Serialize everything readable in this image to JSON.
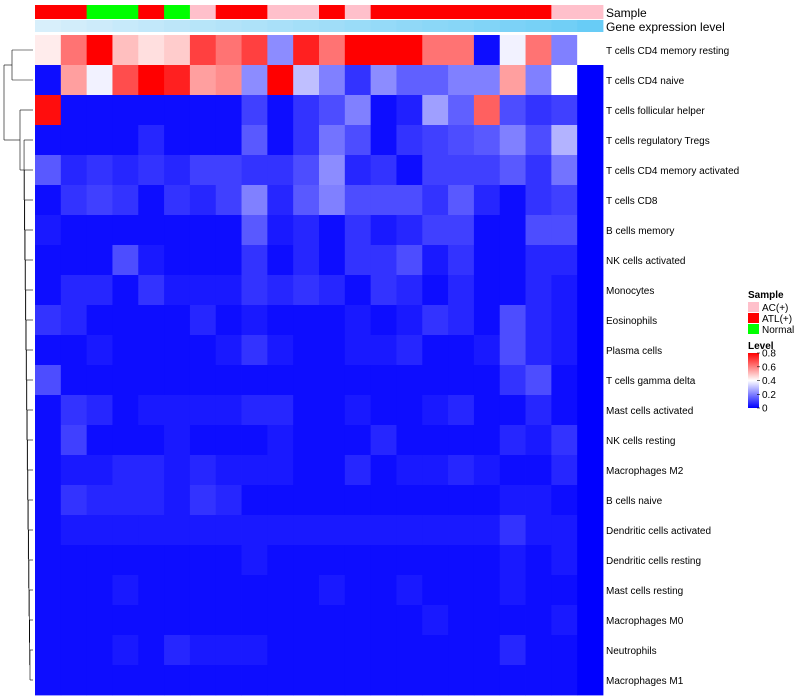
{
  "chart_data": {
    "type": "heatmap",
    "title": "",
    "annotation_tracks": [
      {
        "name": "Sample",
        "values": [
          "ATL(+)",
          "ATL(+)",
          "Normal",
          "Normal",
          "ATL(+)",
          "Normal",
          "AC(+)",
          "ATL(+)",
          "ATL(+)",
          "AC(+)",
          "AC(+)",
          "ATL(+)",
          "AC(+)",
          "ATL(+)",
          "ATL(+)",
          "ATL(+)",
          "ATL(+)",
          "ATL(+)",
          "ATL(+)",
          "ATL(+)",
          "AC(+)",
          "AC(+)"
        ]
      },
      {
        "name": "Gene expression level",
        "values": [
          0.05,
          0.1,
          0.14,
          0.18,
          0.22,
          0.26,
          0.3,
          0.33,
          0.37,
          0.41,
          0.45,
          0.48,
          0.52,
          0.56,
          0.6,
          0.64,
          0.67,
          0.71,
          0.75,
          0.79,
          0.83,
          0.9
        ]
      }
    ],
    "rows": [
      "T cells CD4 memory resting",
      "T cells CD4 naive",
      "T cells follicular helper",
      "T cells regulatory  Tregs",
      "T cells CD4 memory activated",
      "T cells CD8",
      "B cells memory",
      "NK cells activated",
      "Monocytes",
      "Eosinophils",
      "Plasma cells",
      "T cells gamma delta",
      "Mast cells activated",
      "NK cells resting",
      "Macrophages M2",
      "B cells naive",
      "Dendritic cells activated",
      "Dendritic cells resting",
      "Mast cells resting",
      "Macrophages M0",
      "Neutrophils",
      "Macrophages M1"
    ],
    "values": [
      [
        0.43,
        0.62,
        0.8,
        0.5,
        0.45,
        0.48,
        0.7,
        0.62,
        0.7,
        0.22,
        0.75,
        0.62,
        0.8,
        0.8,
        0.8,
        0.62,
        0.62,
        0.02,
        0.38,
        0.62,
        0.2,
        0.4
      ],
      [
        0.02,
        0.55,
        0.38,
        0.68,
        0.8,
        0.75,
        0.55,
        0.58,
        0.22,
        0.8,
        0.3,
        0.2,
        0.08,
        0.22,
        0.15,
        0.15,
        0.2,
        0.2,
        0.55,
        0.2,
        0.4,
        0.0
      ],
      [
        0.78,
        0.02,
        0.02,
        0.02,
        0.02,
        0.02,
        0.02,
        0.02,
        0.1,
        0.02,
        0.08,
        0.12,
        0.2,
        0.02,
        0.05,
        0.25,
        0.15,
        0.65,
        0.12,
        0.08,
        0.1,
        0.0
      ],
      [
        0.02,
        0.02,
        0.02,
        0.02,
        0.06,
        0.02,
        0.02,
        0.02,
        0.14,
        0.02,
        0.08,
        0.18,
        0.12,
        0.02,
        0.08,
        0.1,
        0.12,
        0.14,
        0.2,
        0.12,
        0.28,
        0.0
      ],
      [
        0.14,
        0.06,
        0.08,
        0.06,
        0.08,
        0.06,
        0.1,
        0.1,
        0.08,
        0.08,
        0.12,
        0.22,
        0.06,
        0.08,
        0.02,
        0.1,
        0.1,
        0.1,
        0.14,
        0.08,
        0.18,
        0.0
      ],
      [
        0.02,
        0.08,
        0.1,
        0.08,
        0.02,
        0.08,
        0.06,
        0.1,
        0.2,
        0.06,
        0.14,
        0.2,
        0.12,
        0.12,
        0.12,
        0.08,
        0.14,
        0.06,
        0.02,
        0.08,
        0.1,
        0.0
      ],
      [
        0.04,
        0.02,
        0.02,
        0.02,
        0.02,
        0.02,
        0.02,
        0.02,
        0.14,
        0.04,
        0.06,
        0.02,
        0.08,
        0.04,
        0.06,
        0.1,
        0.1,
        0.02,
        0.02,
        0.12,
        0.12,
        0.0
      ],
      [
        0.02,
        0.02,
        0.02,
        0.12,
        0.04,
        0.02,
        0.02,
        0.02,
        0.08,
        0.02,
        0.06,
        0.02,
        0.08,
        0.08,
        0.12,
        0.04,
        0.08,
        0.02,
        0.02,
        0.06,
        0.06,
        0.0
      ],
      [
        0.02,
        0.06,
        0.06,
        0.02,
        0.08,
        0.04,
        0.04,
        0.04,
        0.08,
        0.06,
        0.08,
        0.06,
        0.02,
        0.08,
        0.06,
        0.02,
        0.06,
        0.02,
        0.02,
        0.06,
        0.04,
        0.0
      ],
      [
        0.08,
        0.06,
        0.02,
        0.02,
        0.02,
        0.02,
        0.06,
        0.02,
        0.04,
        0.02,
        0.02,
        0.02,
        0.04,
        0.02,
        0.04,
        0.08,
        0.06,
        0.02,
        0.12,
        0.06,
        0.04,
        0.0
      ],
      [
        0.02,
        0.02,
        0.04,
        0.02,
        0.02,
        0.02,
        0.02,
        0.04,
        0.08,
        0.04,
        0.02,
        0.02,
        0.04,
        0.04,
        0.06,
        0.02,
        0.02,
        0.04,
        0.12,
        0.06,
        0.04,
        0.0
      ],
      [
        0.12,
        0.02,
        0.02,
        0.02,
        0.02,
        0.02,
        0.02,
        0.02,
        0.02,
        0.02,
        0.02,
        0.02,
        0.02,
        0.02,
        0.02,
        0.02,
        0.02,
        0.02,
        0.08,
        0.12,
        0.02,
        0.0
      ],
      [
        0.02,
        0.08,
        0.06,
        0.02,
        0.04,
        0.04,
        0.04,
        0.04,
        0.06,
        0.06,
        0.02,
        0.02,
        0.04,
        0.02,
        0.02,
        0.04,
        0.06,
        0.02,
        0.02,
        0.06,
        0.02,
        0.0
      ],
      [
        0.02,
        0.1,
        0.02,
        0.02,
        0.02,
        0.04,
        0.02,
        0.02,
        0.02,
        0.04,
        0.02,
        0.02,
        0.02,
        0.06,
        0.02,
        0.02,
        0.02,
        0.02,
        0.06,
        0.04,
        0.08,
        0.0
      ],
      [
        0.02,
        0.04,
        0.04,
        0.06,
        0.06,
        0.04,
        0.06,
        0.04,
        0.04,
        0.04,
        0.02,
        0.02,
        0.06,
        0.02,
        0.04,
        0.04,
        0.06,
        0.04,
        0.02,
        0.02,
        0.06,
        0.0
      ],
      [
        0.02,
        0.08,
        0.06,
        0.06,
        0.06,
        0.04,
        0.08,
        0.06,
        0.02,
        0.02,
        0.02,
        0.02,
        0.02,
        0.02,
        0.02,
        0.02,
        0.02,
        0.02,
        0.04,
        0.04,
        0.02,
        0.0
      ],
      [
        0.02,
        0.04,
        0.04,
        0.04,
        0.04,
        0.04,
        0.04,
        0.04,
        0.04,
        0.04,
        0.04,
        0.04,
        0.04,
        0.04,
        0.04,
        0.04,
        0.04,
        0.04,
        0.08,
        0.04,
        0.04,
        0.0
      ],
      [
        0.02,
        0.02,
        0.02,
        0.02,
        0.02,
        0.02,
        0.02,
        0.02,
        0.04,
        0.02,
        0.02,
        0.02,
        0.02,
        0.02,
        0.02,
        0.02,
        0.02,
        0.02,
        0.04,
        0.02,
        0.04,
        0.0
      ],
      [
        0.02,
        0.02,
        0.02,
        0.04,
        0.02,
        0.02,
        0.02,
        0.02,
        0.02,
        0.02,
        0.02,
        0.04,
        0.02,
        0.02,
        0.04,
        0.02,
        0.02,
        0.02,
        0.04,
        0.02,
        0.02,
        0.0
      ],
      [
        0.02,
        0.02,
        0.02,
        0.02,
        0.02,
        0.02,
        0.02,
        0.02,
        0.02,
        0.02,
        0.02,
        0.02,
        0.02,
        0.02,
        0.02,
        0.04,
        0.02,
        0.02,
        0.02,
        0.02,
        0.04,
        0.0
      ],
      [
        0.02,
        0.02,
        0.02,
        0.04,
        0.02,
        0.06,
        0.04,
        0.04,
        0.04,
        0.02,
        0.02,
        0.02,
        0.02,
        0.02,
        0.02,
        0.02,
        0.02,
        0.02,
        0.06,
        0.02,
        0.02,
        0.0
      ],
      [
        0.02,
        0.02,
        0.02,
        0.02,
        0.02,
        0.02,
        0.02,
        0.02,
        0.02,
        0.02,
        0.02,
        0.02,
        0.02,
        0.02,
        0.02,
        0.02,
        0.02,
        0.02,
        0.02,
        0.02,
        0.02,
        0.0
      ]
    ],
    "legend": {
      "sample_title": "Sample",
      "sample_items": [
        {
          "label": "AC(+)",
          "color": "#ffc0cb"
        },
        {
          "label": "ATL(+)",
          "color": "#ff0000"
        },
        {
          "label": "Normal",
          "color": "#00ff00"
        }
      ],
      "level_title": "Level",
      "level_ticks": [
        "0.8",
        "0.6",
        "0.4",
        "0.2",
        "0"
      ],
      "level_range": [
        0,
        0.8
      ],
      "placement": "right"
    },
    "colors": {
      "low": "#0000ff",
      "mid": "#ffffff",
      "high": "#ff0000",
      "expr_low": "#dff1fb",
      "expr_high": "#5bc8f5"
    }
  }
}
